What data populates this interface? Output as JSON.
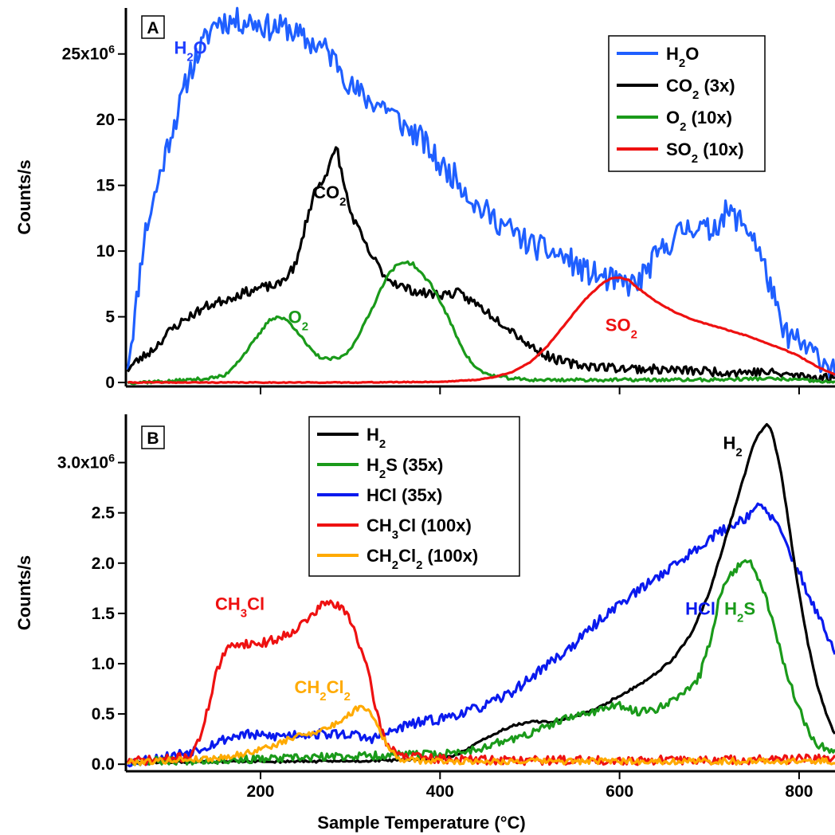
{
  "chart_data": [
    {
      "panel": "A",
      "type": "line",
      "ylabel": "Counts/s",
      "xlim": [
        50,
        840
      ],
      "ylim": [
        -0.3,
        28.5
      ],
      "y_scale_note": "×10^6",
      "yticks": [
        {
          "v": 0,
          "label": "0"
        },
        {
          "v": 5,
          "label": "5"
        },
        {
          "v": 10,
          "label": "10"
        },
        {
          "v": 15,
          "label": "15"
        },
        {
          "v": 20,
          "label": "20"
        },
        {
          "v": 25,
          "label": "25x10",
          "sup": "6"
        }
      ],
      "legend_position": "top-right",
      "legend": [
        {
          "color": "#1f5fff",
          "parts": [
            [
              "H",
              ""
            ],
            [
              "2",
              "sub"
            ],
            [
              "O",
              ""
            ]
          ]
        },
        {
          "color": "#000000",
          "parts": [
            [
              "CO",
              ""
            ],
            [
              "2",
              "sub"
            ],
            [
              " (3x)",
              ""
            ]
          ]
        },
        {
          "color": "#1a9a1a",
          "parts": [
            [
              "O",
              ""
            ],
            [
              "2",
              "sub"
            ],
            [
              " (10x)",
              ""
            ]
          ]
        },
        {
          "color": "#ee1111",
          "parts": [
            [
              "SO",
              ""
            ],
            [
              "2",
              "sub"
            ],
            [
              " (10x)",
              ""
            ]
          ]
        }
      ],
      "annotations": [
        {
          "color": "#1f3fff",
          "x": 122,
          "y": 25.5,
          "parts": [
            [
              "H",
              ""
            ],
            [
              "2",
              "sub"
            ],
            [
              "O",
              ""
            ]
          ]
        },
        {
          "color": "#000000",
          "x": 277,
          "y": 14.5,
          "parts": [
            [
              "CO",
              ""
            ],
            [
              "2",
              "sub"
            ]
          ]
        },
        {
          "color": "#1a9a1a",
          "x": 242,
          "y": 5.0,
          "parts": [
            [
              "O",
              ""
            ],
            [
              "2",
              "sub"
            ]
          ]
        },
        {
          "color": "#ee1111",
          "x": 602,
          "y": 4.4,
          "parts": [
            [
              "SO",
              ""
            ],
            [
              "2",
              "sub"
            ]
          ]
        }
      ],
      "series": [
        {
          "color": "#1f5fff",
          "noise": 1.0,
          "seed": 11,
          "x": [
            52,
            60,
            70,
            85,
            100,
            110,
            120,
            130,
            150,
            170,
            190,
            210,
            230,
            250,
            270,
            290,
            300,
            320,
            340,
            360,
            380,
            400,
            420,
            440,
            460,
            480,
            500,
            520,
            540,
            560,
            580,
            600,
            620,
            640,
            660,
            680,
            700,
            720,
            740,
            750,
            760,
            770,
            780,
            800,
            820,
            840
          ],
          "y": [
            1.5,
            5,
            11,
            15,
            19,
            21,
            23.5,
            25,
            27.5,
            27.5,
            27.5,
            27,
            27,
            26,
            25.5,
            24,
            22.5,
            21.5,
            21,
            19.5,
            18.5,
            16.5,
            15.5,
            13.5,
            12.5,
            11.5,
            10.5,
            10,
            9.5,
            8.5,
            8,
            7.5,
            7.5,
            9.5,
            11,
            12,
            11.5,
            13,
            12,
            11,
            9,
            7,
            4,
            3,
            2,
            1
          ]
        },
        {
          "color": "#000000",
          "noise": 0.35,
          "seed": 23,
          "x": [
            52,
            60,
            80,
            100,
            120,
            140,
            160,
            180,
            200,
            220,
            240,
            250,
            260,
            270,
            280,
            285,
            290,
            300,
            320,
            340,
            360,
            380,
            400,
            420,
            440,
            460,
            480,
            500,
            520,
            540,
            560,
            600,
            640,
            680,
            720,
            760,
            800,
            840
          ],
          "y": [
            1,
            1.5,
            2.5,
            4,
            5,
            5.8,
            6.3,
            6.8,
            7.2,
            7.4,
            9,
            12,
            14.5,
            15.5,
            17,
            18,
            16,
            13,
            10,
            8,
            7.2,
            6.8,
            6.7,
            6.8,
            6,
            5,
            4,
            2.8,
            2,
            1.5,
            1.3,
            1.1,
            1,
            0.9,
            0.8,
            0.8,
            0.5,
            0.3
          ]
        },
        {
          "color": "#1a9a1a",
          "noise": 0.12,
          "seed": 37,
          "x": [
            52,
            100,
            120,
            140,
            160,
            180,
            200,
            210,
            220,
            230,
            240,
            250,
            260,
            270,
            280,
            290,
            300,
            320,
            340,
            350,
            360,
            370,
            380,
            390,
            400,
            410,
            420,
            430,
            440,
            450,
            460,
            480,
            500,
            600,
            700,
            760,
            800,
            840
          ],
          "y": [
            0,
            0.1,
            0.2,
            0.3,
            0.5,
            2,
            3.8,
            4.8,
            5,
            4.7,
            4,
            3,
            2.2,
            1.8,
            1.8,
            1.9,
            2.5,
            5,
            8,
            8.8,
            9.2,
            9,
            8.2,
            7.5,
            6.2,
            4.8,
            3.3,
            2,
            1.1,
            0.7,
            0.5,
            0.3,
            0.2,
            0.2,
            0.2,
            0.3,
            0.2,
            0
          ]
        },
        {
          "color": "#ee1111",
          "noise": 0.03,
          "seed": 41,
          "x": [
            52,
            300,
            400,
            440,
            460,
            480,
            500,
            520,
            540,
            560,
            580,
            590,
            600,
            610,
            620,
            640,
            660,
            680,
            700,
            720,
            740,
            760,
            780,
            800,
            820,
            840
          ],
          "y": [
            0,
            0,
            0.05,
            0.2,
            0.4,
            0.8,
            1.5,
            2.8,
            4.5,
            6.2,
            7.5,
            7.9,
            8,
            7.8,
            7.2,
            6.2,
            5.4,
            4.8,
            4.4,
            4,
            3.6,
            3.1,
            2.6,
            2,
            1.2,
            0.6
          ]
        }
      ]
    },
    {
      "panel": "B",
      "type": "line",
      "xlabel": "Sample Temperature (°C)",
      "ylabel": "Counts/s",
      "xlim": [
        50,
        840
      ],
      "ylim": [
        -0.07,
        3.48
      ],
      "y_scale_note": "×10^6",
      "xticks": [
        200,
        400,
        600,
        800
      ],
      "yticks": [
        {
          "v": 0,
          "label": "0.0"
        },
        {
          "v": 0.5,
          "label": "0.5"
        },
        {
          "v": 1.0,
          "label": "1.0"
        },
        {
          "v": 1.5,
          "label": "1.5"
        },
        {
          "v": 2.0,
          "label": "2.0"
        },
        {
          "v": 2.5,
          "label": "2.5"
        },
        {
          "v": 3.0,
          "label": "3.0x10",
          "sup": "6"
        }
      ],
      "legend_position": "top-center",
      "legend": [
        {
          "color": "#000000",
          "parts": [
            [
              "H",
              ""
            ],
            [
              "2",
              "sub"
            ]
          ]
        },
        {
          "color": "#1a9a1a",
          "parts": [
            [
              "H",
              ""
            ],
            [
              "2",
              "sub"
            ],
            [
              "S (35x)",
              ""
            ]
          ]
        },
        {
          "color": "#0a1aee",
          "parts": [
            [
              "HCl (35x)",
              ""
            ]
          ]
        },
        {
          "color": "#ee1111",
          "parts": [
            [
              "CH",
              ""
            ],
            [
              "3",
              "sub"
            ],
            [
              "Cl (100x)",
              ""
            ]
          ]
        },
        {
          "color": "#ffaa00",
          "parts": [
            [
              "CH",
              ""
            ],
            [
              "2",
              "sub"
            ],
            [
              "Cl",
              ""
            ],
            [
              "2",
              "sub"
            ],
            [
              " (100x)",
              ""
            ]
          ]
        }
      ],
      "annotations": [
        {
          "color": "#000000",
          "x": 726,
          "y": 3.2,
          "parts": [
            [
              "H",
              ""
            ],
            [
              "2",
              "sub"
            ]
          ]
        },
        {
          "color": "#0a1aee",
          "x": 690,
          "y": 1.55,
          "parts": [
            [
              "HCl",
              ""
            ]
          ]
        },
        {
          "color": "#1a9a1a",
          "x": 734,
          "y": 1.55,
          "parts": [
            [
              "H",
              ""
            ],
            [
              "2",
              "sub"
            ],
            [
              "S",
              ""
            ]
          ]
        },
        {
          "color": "#ee1111",
          "x": 177,
          "y": 1.6,
          "parts": [
            [
              "CH",
              ""
            ],
            [
              "3",
              "sub"
            ],
            [
              "Cl",
              ""
            ]
          ]
        },
        {
          "color": "#ffaa00",
          "x": 269,
          "y": 0.77,
          "parts": [
            [
              "CH",
              ""
            ],
            [
              "2",
              "sub"
            ],
            [
              "Cl",
              ""
            ],
            [
              "2",
              "sub"
            ]
          ]
        }
      ],
      "series": [
        {
          "color": "#0a1aee",
          "noise": 0.05,
          "seed": 53,
          "x": [
            52,
            100,
            140,
            160,
            180,
            200,
            220,
            240,
            260,
            280,
            300,
            320,
            340,
            360,
            380,
            400,
            420,
            440,
            460,
            480,
            500,
            520,
            540,
            560,
            580,
            600,
            620,
            640,
            660,
            680,
            700,
            720,
            740,
            750,
            760,
            770,
            780,
            800,
            820,
            840
          ],
          "y": [
            0.02,
            0.08,
            0.18,
            0.25,
            0.3,
            0.28,
            0.28,
            0.3,
            0.3,
            0.3,
            0.3,
            0.25,
            0.3,
            0.38,
            0.42,
            0.45,
            0.5,
            0.55,
            0.62,
            0.72,
            0.85,
            1.0,
            1.12,
            1.28,
            1.45,
            1.6,
            1.72,
            1.85,
            1.98,
            2.1,
            2.25,
            2.35,
            2.45,
            2.55,
            2.55,
            2.45,
            2.3,
            1.9,
            1.5,
            1.1
          ]
        },
        {
          "color": "#000000",
          "noise": 0.012,
          "seed": 61,
          "x": [
            52,
            300,
            400,
            420,
            440,
            460,
            480,
            500,
            520,
            540,
            560,
            580,
            600,
            620,
            640,
            660,
            680,
            700,
            720,
            730,
            740,
            750,
            760,
            765,
            770,
            780,
            790,
            800,
            810,
            820,
            830,
            840
          ],
          "y": [
            0.02,
            0.03,
            0.05,
            0.1,
            0.2,
            0.3,
            0.38,
            0.42,
            0.42,
            0.45,
            0.5,
            0.58,
            0.68,
            0.78,
            0.9,
            1.05,
            1.3,
            1.7,
            2.3,
            2.6,
            2.9,
            3.2,
            3.35,
            3.38,
            3.3,
            2.9,
            2.3,
            1.7,
            1.2,
            0.8,
            0.5,
            0.3
          ]
        },
        {
          "color": "#1a9a1a",
          "noise": 0.04,
          "seed": 67,
          "x": [
            52,
            200,
            300,
            400,
            420,
            440,
            460,
            480,
            500,
            520,
            540,
            560,
            580,
            600,
            620,
            640,
            660,
            680,
            690,
            700,
            710,
            720,
            730,
            740,
            750,
            760,
            770,
            780,
            790,
            800,
            810,
            820,
            840
          ],
          "y": [
            0.03,
            0.05,
            0.08,
            0.1,
            0.12,
            0.15,
            0.2,
            0.25,
            0.3,
            0.38,
            0.45,
            0.5,
            0.55,
            0.58,
            0.52,
            0.55,
            0.65,
            0.75,
            0.9,
            1.2,
            1.6,
            1.85,
            1.95,
            2.05,
            1.95,
            1.75,
            1.45,
            1.1,
            0.8,
            0.55,
            0.35,
            0.2,
            0.12
          ]
        },
        {
          "color": "#ee1111",
          "noise": 0.045,
          "seed": 71,
          "x": [
            52,
            100,
            120,
            130,
            140,
            150,
            160,
            170,
            180,
            200,
            220,
            240,
            260,
            270,
            280,
            290,
            300,
            310,
            320,
            330,
            340,
            360,
            400,
            500,
            600,
            700,
            800,
            840
          ],
          "y": [
            0.03,
            0.05,
            0.08,
            0.2,
            0.5,
            0.9,
            1.1,
            1.2,
            1.2,
            1.2,
            1.25,
            1.35,
            1.5,
            1.6,
            1.6,
            1.55,
            1.45,
            1.2,
            0.9,
            0.5,
            0.2,
            0.08,
            0.05,
            0.04,
            0.04,
            0.04,
            0.05,
            0.05
          ]
        },
        {
          "color": "#ffaa00",
          "noise": 0.03,
          "seed": 79,
          "x": [
            52,
            100,
            150,
            180,
            200,
            220,
            240,
            260,
            280,
            300,
            310,
            320,
            330,
            340,
            350,
            360,
            400,
            500,
            600,
            700,
            800,
            840
          ],
          "y": [
            0.02,
            0.04,
            0.06,
            0.1,
            0.15,
            0.2,
            0.28,
            0.32,
            0.38,
            0.5,
            0.58,
            0.55,
            0.4,
            0.2,
            0.08,
            0.04,
            0.03,
            0.03,
            0.03,
            0.03,
            0.03,
            0.03
          ]
        }
      ]
    }
  ]
}
